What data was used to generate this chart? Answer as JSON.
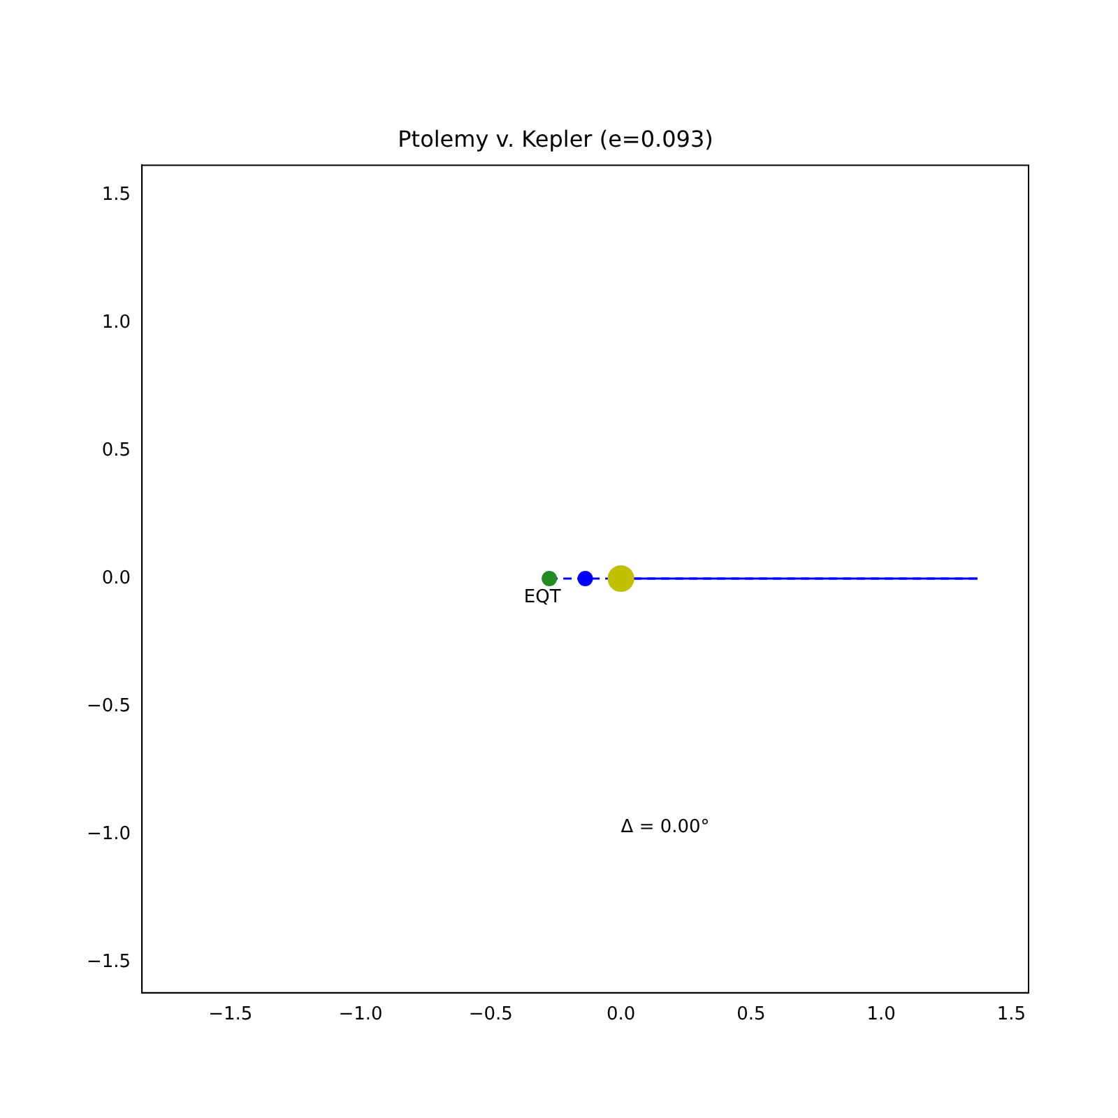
{
  "chart_data": {
    "type": "scatter",
    "title": "Ptolemy v. Kepler (e=0.093)",
    "series": [
      {
        "type": "line",
        "color": "#0000ff",
        "line_style": "solid",
        "marker": "none",
        "x": [
          0,
          1.37
        ],
        "values": [
          0,
          0
        ]
      },
      {
        "type": "line",
        "color": "#0000ff",
        "line_style": "dashed",
        "marker": "none",
        "x": [
          -0.275,
          1.37
        ],
        "values": [
          0,
          0
        ]
      },
      {
        "color": "#228b22",
        "marker": "circle",
        "x": [
          -0.275
        ],
        "values": [
          0
        ]
      },
      {
        "color": "#0000ff",
        "marker": "circle",
        "x": [
          -0.137
        ],
        "values": [
          0
        ]
      },
      {
        "color": "#c0c000",
        "marker": "circle",
        "x": [
          0
        ],
        "values": [
          0
        ]
      }
    ],
    "xlim": [
      -1.84,
      1.566
    ],
    "ylim": [
      -1.62,
      1.617
    ],
    "xticks": [
      {
        "value": -1.5,
        "label": "−1.5"
      },
      {
        "value": -1.0,
        "label": "−1.0"
      },
      {
        "value": -0.5,
        "label": "−0.5"
      },
      {
        "value": 0,
        "label": "0.0"
      },
      {
        "value": 0.5,
        "label": "0.5"
      },
      {
        "value": 1.0,
        "label": "1.0"
      },
      {
        "value": 1.5,
        "label": "1.5"
      }
    ],
    "yticks": [
      {
        "value": -1.5,
        "label": "−1.5"
      },
      {
        "value": -1.0,
        "label": "−1.0"
      },
      {
        "value": -0.5,
        "label": "−0.5"
      },
      {
        "value": 0,
        "label": "0.0"
      },
      {
        "value": 0.5,
        "label": "0.5"
      },
      {
        "value": 1.0,
        "label": "1.0"
      },
      {
        "value": 1.5,
        "label": "1.5"
      }
    ],
    "grid": false,
    "legend": false,
    "annotations": [
      {
        "text": "EQT",
        "x": -0.275,
        "y": 0
      },
      "Δ = 0.00°"
    ]
  }
}
